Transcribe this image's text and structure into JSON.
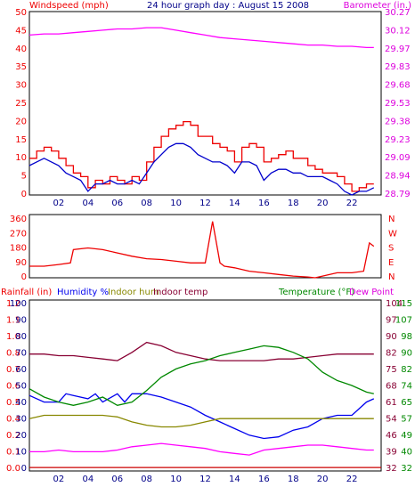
{
  "colors": {
    "wind": "#ee0000",
    "wind_avg": "#0000cc",
    "baro": "#ff00ff",
    "dir": "#ee0000",
    "rain": "#cc0000",
    "humidity": "#0000ee",
    "indoor_hum": "#888800",
    "indoor_temp": "#880033",
    "temperature": "#008800",
    "dew_point": "#ff00ff",
    "label_red": "#ee0000",
    "label_navy": "#000088",
    "label_olive": "#888800",
    "label_maroon": "#880033",
    "label_green": "#008800",
    "label_magenta": "#dd00dd"
  },
  "chart_data": [
    {
      "type": "line",
      "title": "24 hour graph day : August 15 2008",
      "left_axis_label": "Windspeed (mph)",
      "right_axis_label": "Barometer (in.)",
      "x_tick_labels": [
        "02",
        "04",
        "06",
        "08",
        "10",
        "12",
        "14",
        "16",
        "18",
        "20",
        "22"
      ],
      "x_range": [
        0,
        24
      ],
      "y_left_ticks": [
        "0",
        "5",
        "10",
        "15",
        "20",
        "25",
        "30",
        "35",
        "40",
        "45",
        "50"
      ],
      "y_left_range": [
        0,
        50
      ],
      "y_right_ticks": [
        "28.79",
        "28.94",
        "29.09",
        "29.23",
        "29.38",
        "29.53",
        "29.68",
        "29.83",
        "29.97",
        "30.12",
        "30.27"
      ],
      "y_right_range": [
        28.79,
        30.27
      ],
      "grid": false,
      "series": [
        {
          "color_key": "wind",
          "axis": "left",
          "x": [
            0,
            0.5,
            1,
            1.5,
            2,
            2.5,
            3,
            3.5,
            4,
            4.5,
            5,
            5.5,
            6,
            6.5,
            7,
            7.5,
            8,
            8.5,
            9,
            9.5,
            10,
            10.5,
            11,
            11.5,
            12,
            12.5,
            13,
            13.5,
            14,
            14.5,
            15,
            15.5,
            16,
            16.5,
            17,
            17.5,
            18,
            18.5,
            19,
            19.5,
            20,
            20.5,
            21,
            21.5,
            22,
            22.5,
            23,
            23.5
          ],
          "values": [
            10,
            12,
            13,
            12,
            10,
            8,
            6,
            5,
            2,
            4,
            3,
            5,
            4,
            3,
            5,
            4,
            9,
            13,
            16,
            18,
            19,
            20,
            19,
            16,
            16,
            14,
            13,
            12,
            9,
            13,
            14,
            13,
            9,
            10,
            11,
            12,
            10,
            10,
            8,
            7,
            6,
            6,
            5,
            3,
            1,
            2,
            3,
            3
          ]
        },
        {
          "color_key": "wind_avg",
          "axis": "left",
          "x": [
            0,
            0.5,
            1,
            1.5,
            2,
            2.5,
            3,
            3.5,
            4,
            4.5,
            5,
            5.5,
            6,
            6.5,
            7,
            7.5,
            8,
            8.5,
            9,
            9.5,
            10,
            10.5,
            11,
            11.5,
            12,
            12.5,
            13,
            13.5,
            14,
            14.5,
            15,
            15.5,
            16,
            16.5,
            17,
            17.5,
            18,
            18.5,
            19,
            19.5,
            20,
            20.5,
            21,
            21.5,
            22,
            22.5,
            23,
            23.5
          ],
          "values": [
            8,
            9,
            10,
            9,
            8,
            6,
            5,
            4,
            1,
            3,
            3,
            4,
            3,
            3,
            4,
            3,
            6,
            9,
            11,
            13,
            14,
            14,
            13,
            11,
            10,
            9,
            9,
            8,
            6,
            9,
            9,
            8,
            4,
            6,
            7,
            7,
            6,
            6,
            5,
            5,
            5,
            4,
            3,
            1,
            0,
            1,
            1,
            2
          ]
        },
        {
          "color_key": "baro",
          "axis": "right",
          "x": [
            0,
            1,
            2,
            3,
            4,
            5,
            6,
            7,
            8,
            9,
            10,
            11,
            12,
            13,
            14,
            15,
            16,
            17,
            18,
            19,
            20,
            21,
            22,
            23,
            23.5
          ],
          "values": [
            30.08,
            30.09,
            30.09,
            30.1,
            30.11,
            30.12,
            30.13,
            30.13,
            30.14,
            30.14,
            30.12,
            30.1,
            30.08,
            30.06,
            30.05,
            30.04,
            30.03,
            30.02,
            30.01,
            30.0,
            30.0,
            29.99,
            29.99,
            29.98,
            29.98
          ]
        }
      ]
    },
    {
      "type": "line",
      "title": "",
      "right_axis_label": "",
      "x_range": [
        0,
        24
      ],
      "y_left_ticks": [
        "0",
        "90",
        "180",
        "270",
        "360"
      ],
      "y_left_range": [
        0,
        360
      ],
      "y_right_ticks": [
        "N",
        "E",
        "S",
        "W",
        "N"
      ],
      "series": [
        {
          "color_key": "dir",
          "axis": "left",
          "x": [
            0,
            1,
            2,
            2.8,
            3,
            4,
            5,
            6,
            7,
            8,
            9,
            10,
            11,
            12,
            12.5,
            13,
            13.3,
            14,
            15,
            16,
            17,
            18,
            19,
            19.5,
            20,
            21,
            22,
            22.8,
            23.2,
            23.5
          ],
          "values": [
            70,
            70,
            80,
            90,
            170,
            180,
            170,
            150,
            130,
            115,
            110,
            100,
            90,
            90,
            340,
            90,
            70,
            60,
            40,
            30,
            20,
            10,
            5,
            0,
            10,
            30,
            30,
            40,
            210,
            190
          ]
        }
      ]
    },
    {
      "type": "line",
      "title": "",
      "axis_labels": {
        "rainfall": "Rainfall (in)",
        "humidity": "Humidity %",
        "indoor_hum": "Indoor hum",
        "indoor_temp": "Indoor temp",
        "temperature": "Temperature (°F)",
        "dew_point": "Dew Point"
      },
      "x_range": [
        0,
        24
      ],
      "y_rain_ticks": [
        "0.0",
        "0.1",
        "0.2",
        "0.4",
        "0.5",
        "0.6",
        "0.7",
        "0.8",
        "1.0",
        "1.1",
        "1.2"
      ],
      "y_humidity_ticks": [
        "0",
        "10",
        "20",
        "30",
        "40",
        "50",
        "60",
        "70",
        "80",
        "90",
        "100"
      ],
      "y_humidity_range": [
        0,
        100
      ],
      "y_indoor_ticks": [
        "32",
        "39",
        "46",
        "54",
        "61",
        "68",
        "75",
        "82",
        "90",
        "97",
        "104"
      ],
      "y_temp_ticks": [
        "32",
        "40",
        "49",
        "57",
        "65",
        "74",
        "82",
        "90",
        "98",
        "107",
        "115"
      ],
      "series": [
        {
          "color_key": "rain",
          "axis": "humidity",
          "x": [
            0,
            24
          ],
          "values": [
            0.5,
            0.5
          ]
        },
        {
          "color_key": "humidity",
          "axis": "humidity",
          "x": [
            0,
            1,
            2,
            2.5,
            3,
            4,
            4.5,
            5,
            6,
            6.5,
            7,
            8,
            9,
            10,
            11,
            12,
            13,
            14,
            15,
            16,
            17,
            18,
            19,
            20,
            21,
            22,
            23,
            23.5
          ],
          "values": [
            44,
            40,
            40,
            45,
            44,
            42,
            45,
            40,
            45,
            40,
            45,
            45,
            43,
            40,
            37,
            32,
            28,
            24,
            20,
            18,
            19,
            23,
            25,
            30,
            32,
            32,
            40,
            42
          ]
        },
        {
          "color_key": "indoor_hum",
          "axis": "humidity",
          "x": [
            0,
            1,
            2,
            3,
            4,
            5,
            6,
            7,
            8,
            9,
            10,
            11,
            12,
            13,
            14,
            15,
            16,
            17,
            18,
            19,
            20,
            21,
            22,
            23,
            23.5
          ],
          "values": [
            30,
            32,
            32,
            32,
            32,
            32,
            31,
            28,
            26,
            25,
            25,
            26,
            28,
            30,
            30,
            30,
            30,
            30,
            30,
            30,
            30,
            30,
            30,
            30,
            30
          ]
        },
        {
          "color_key": "indoor_temp",
          "axis": "humidity",
          "x": [
            0,
            1,
            2,
            3,
            4,
            5,
            6,
            7,
            8,
            9,
            10,
            11,
            12,
            13,
            14,
            15,
            16,
            17,
            18,
            19,
            20,
            21,
            22,
            23,
            23.5
          ],
          "values": [
            69,
            69,
            68,
            68,
            67,
            66,
            65,
            70,
            76,
            74,
            70,
            68,
            66,
            65,
            65,
            65,
            65,
            66,
            66,
            67,
            68,
            69,
            69,
            69,
            69
          ]
        },
        {
          "color_key": "temperature",
          "axis": "humidity",
          "x": [
            0,
            1,
            2,
            3,
            4,
            5,
            6,
            7,
            8,
            9,
            10,
            11,
            12,
            13,
            14,
            15,
            16,
            17,
            18,
            19,
            20,
            21,
            22,
            23,
            23.5
          ],
          "values": [
            48,
            43,
            40,
            38,
            40,
            43,
            38,
            40,
            47,
            55,
            60,
            63,
            65,
            68,
            70,
            72,
            74,
            73,
            70,
            66,
            58,
            53,
            50,
            46,
            45
          ]
        },
        {
          "color_key": "dew_point",
          "axis": "humidity",
          "x": [
            0,
            1,
            2,
            3,
            4,
            5,
            6,
            7,
            8,
            9,
            10,
            11,
            12,
            13,
            14,
            15,
            16,
            17,
            18,
            19,
            20,
            21,
            22,
            23,
            23.5
          ],
          "values": [
            10,
            10,
            11,
            10,
            10,
            10,
            11,
            13,
            14,
            15,
            14,
            13,
            12,
            10,
            9,
            8,
            11,
            12,
            13,
            14,
            14,
            13,
            12,
            11,
            11
          ]
        }
      ]
    }
  ]
}
